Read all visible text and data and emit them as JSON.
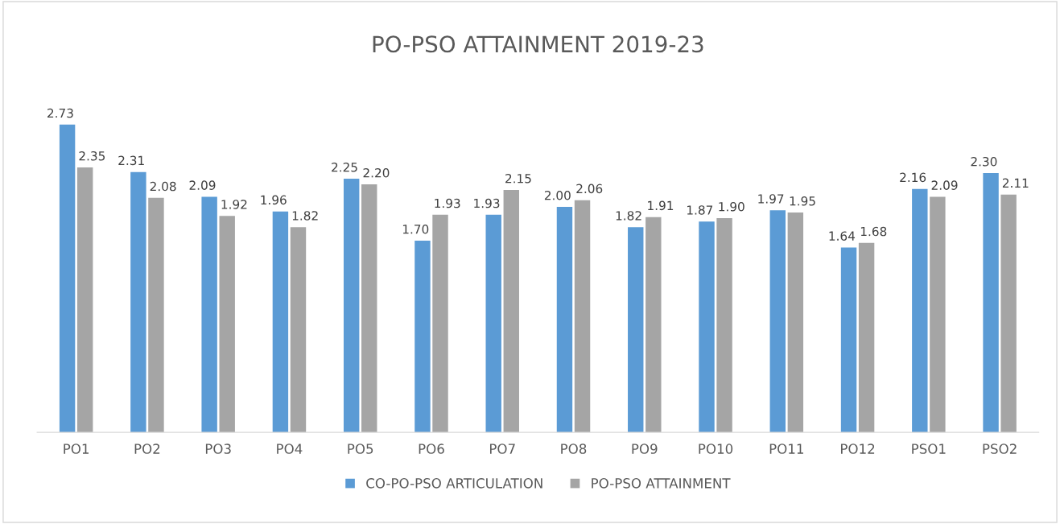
{
  "chart_data": {
    "type": "bar",
    "title": "PO-PSO ATTAINMENT 2019-23",
    "categories": [
      "PO1",
      "PO2",
      "PO3",
      "PO4",
      "PO5",
      "PO6",
      "PO7",
      "PO8",
      "PO9",
      "PO10",
      "PO11",
      "PO12",
      "PSO1",
      "PSO2"
    ],
    "series": [
      {
        "name": "CO-PO-PSO ARTICULATION",
        "color": "#5b9bd5",
        "values": [
          2.73,
          2.31,
          2.09,
          1.96,
          2.25,
          1.7,
          1.93,
          2.0,
          1.82,
          1.87,
          1.97,
          1.64,
          2.16,
          2.3
        ],
        "value_labels": [
          "2.73",
          "2.31",
          "2.09",
          "1.96",
          "2.25",
          "1.70",
          "1.93",
          "2.00",
          "1.82",
          "1.87",
          "1.97",
          "1.64",
          "2.16",
          "2.30"
        ]
      },
      {
        "name": "PO-PSO ATTAINMENT",
        "color": "#a5a5a5",
        "values": [
          2.35,
          2.08,
          1.92,
          1.82,
          2.2,
          1.93,
          2.15,
          2.06,
          1.91,
          1.9,
          1.95,
          1.68,
          2.09,
          2.11
        ],
        "value_labels": [
          "2.35",
          "2.08",
          "1.92",
          "1.82",
          "2.20",
          "1.93",
          "2.15",
          "2.06",
          "1.91",
          "1.90",
          "1.95",
          "1.68",
          "2.09",
          "2.11"
        ]
      }
    ],
    "legend": "bottom"
  }
}
